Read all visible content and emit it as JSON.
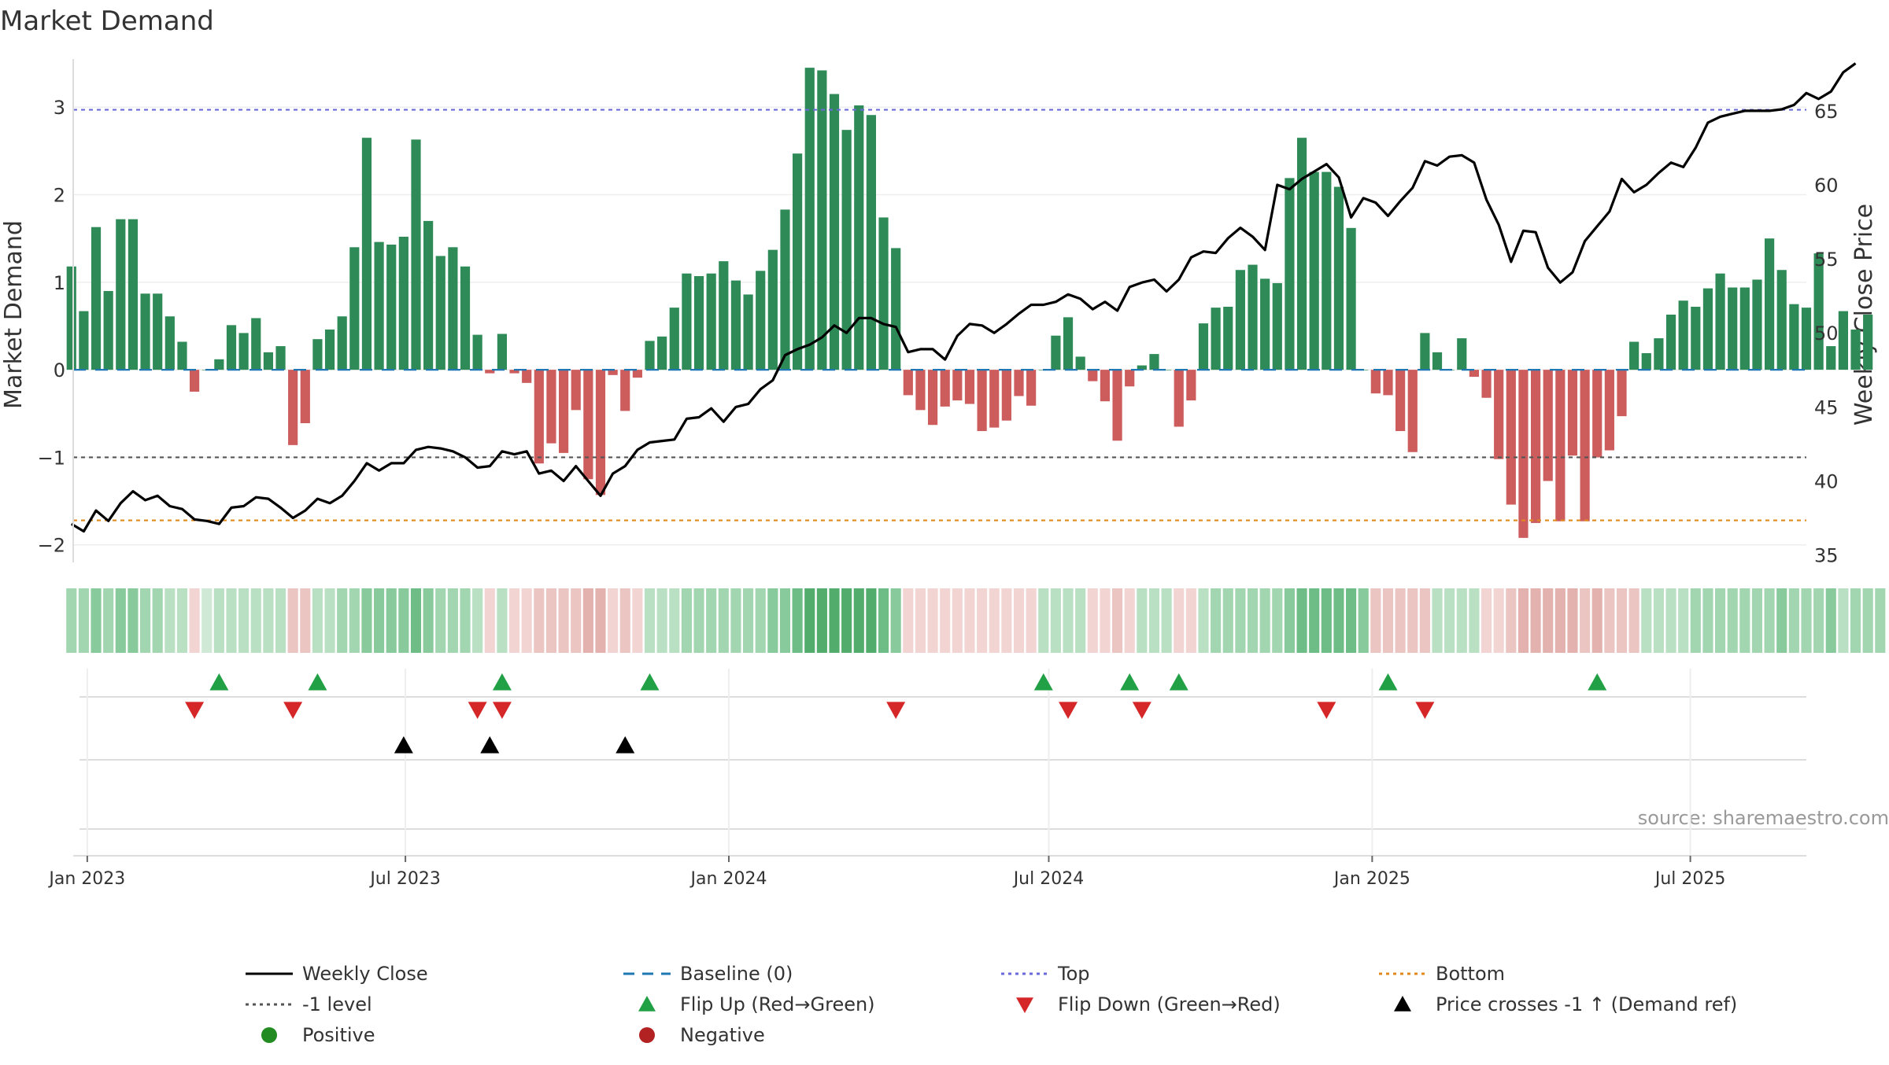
{
  "title": "Market Demand",
  "source_note": "source: sharemaestro.com",
  "left_axis": {
    "label": "Market Demand",
    "ticks": [
      "3",
      "2",
      "1",
      "0",
      "−1",
      "−2"
    ],
    "tick_values": [
      3,
      2,
      1,
      0,
      -1,
      -2
    ],
    "range": [
      -2.2,
      3.55
    ]
  },
  "right_axis": {
    "label": "Weekly Close Price",
    "ticks": [
      "65",
      "60",
      "55",
      "50",
      "45",
      "40",
      "35"
    ],
    "tick_values": [
      65,
      60,
      55,
      50,
      45,
      40,
      35
    ],
    "range": [
      34.5,
      68.5
    ]
  },
  "x_axis": {
    "ticks": [
      "Jan 2023",
      "Jul 2023",
      "Jan 2024",
      "Jul 2024",
      "Jan 2025",
      "Jul 2025"
    ],
    "tick_dates": [
      "2023-01-01",
      "2023-07-01",
      "2024-01-01",
      "2024-07-01",
      "2025-01-01",
      "2025-07-01"
    ],
    "range": [
      "2022-12-24",
      "2025-09-05"
    ]
  },
  "reference_lines": {
    "top": 2.97,
    "minus_one": -1.0,
    "bottom": -1.72,
    "baseline": 0
  },
  "colors": {
    "pos_bar": "#2e8b57",
    "neg_bar": "#cd5c5c",
    "price": "#000000",
    "top": "#6a6ad8",
    "minus_one": "#555555",
    "bottom": "#e08a1e",
    "baseline": "#1f77b4",
    "flip_up": "#22a046",
    "flip_down": "#d62728",
    "cross": "#000000",
    "pos_dot": "#228b22",
    "neg_dot": "#b22222"
  },
  "legend": [
    {
      "label": "Weekly Close",
      "kind": "solid",
      "color": "#000000"
    },
    {
      "label": "Baseline (0)",
      "kind": "longdash",
      "color": "#1f77b4"
    },
    {
      "label": "Top",
      "kind": "dot",
      "color": "#6a6ad8"
    },
    {
      "label": "Bottom",
      "kind": "dot",
      "color": "#e08a1e"
    },
    {
      "label": "-1 level",
      "kind": "dot",
      "color": "#555555"
    },
    {
      "label": "Flip Up (Red→Green)",
      "kind": "tri-up",
      "color": "#22a046"
    },
    {
      "label": "Flip Down (Green→Red)",
      "kind": "tri-down",
      "color": "#d62728"
    },
    {
      "label": "Price crosses -1 ↑ (Demand ref)",
      "kind": "tri-up",
      "color": "#000000"
    },
    {
      "label": "Positive",
      "kind": "circle",
      "color": "#228b22"
    },
    {
      "label": "Negative",
      "kind": "circle",
      "color": "#b22222"
    }
  ],
  "chart_data": {
    "type": "bar",
    "title": "Market Demand",
    "start_week": "2022-12-23",
    "week_step_days": 7,
    "ylabel": "Market Demand",
    "y2label": "Weekly Close Price",
    "ylim": [
      -2.2,
      3.55
    ],
    "y2lim": [
      34.5,
      68.5
    ],
    "series": [
      {
        "name": "Market Demand",
        "values": [
          1.18,
          0.67,
          1.63,
          0.9,
          1.72,
          1.72,
          0.87,
          0.87,
          0.61,
          0.32,
          -0.25,
          0,
          0.12,
          0.51,
          0.42,
          0.59,
          0.2,
          0.27,
          -0.86,
          -0.61,
          0.35,
          0.46,
          0.61,
          1.4,
          2.65,
          1.46,
          1.43,
          1.52,
          2.63,
          1.7,
          1.3,
          1.4,
          1.18,
          0.4,
          -0.04,
          0.41,
          -0.04,
          -0.15,
          -1.07,
          -0.84,
          -0.95,
          -0.46,
          -1.25,
          -1.43,
          -0.06,
          -0.47,
          -0.09,
          0.33,
          0.38,
          0.71,
          1.1,
          1.07,
          1.1,
          1.24,
          1.02,
          0.86,
          1.13,
          1.37,
          1.83,
          2.47,
          3.45,
          3.42,
          3.15,
          2.74,
          3.02,
          2.91,
          1.74,
          1.39,
          -0.29,
          -0.46,
          -0.63,
          -0.42,
          -0.35,
          -0.39,
          -0.7,
          -0.66,
          -0.58,
          -0.3,
          -0.41,
          0,
          0.39,
          0.6,
          0.15,
          -0.13,
          -0.36,
          -0.81,
          -0.19,
          0.05,
          0.18,
          0,
          -0.65,
          -0.35,
          0.53,
          0.71,
          0.72,
          1.14,
          1.2,
          1.04,
          0.99,
          2.19,
          2.65,
          2.26,
          2.26,
          2.09,
          1.62,
          0,
          -0.27,
          -0.29,
          -0.7,
          -0.94,
          0.42,
          0.2,
          0,
          0.36,
          -0.08,
          -0.32,
          -1.02,
          -1.54,
          -1.92,
          -1.75,
          -1.27,
          -1.73,
          -0.98,
          -1.73,
          -1.0,
          -0.92,
          -0.53,
          0.32,
          0.19,
          0.36,
          0.63,
          0.79,
          0.72,
          0.93,
          1.1,
          0.94,
          0.94,
          1.03,
          1.5,
          1.14,
          0.75,
          0.71,
          1.33,
          0.27,
          0.67,
          0.46,
          0.63
        ]
      },
      {
        "name": "Weekly Close",
        "values": [
          37.1,
          36.6,
          38.0,
          37.3,
          38.5,
          39.3,
          38.7,
          39.0,
          38.3,
          38.1,
          37.4,
          37.3,
          37.1,
          38.2,
          38.3,
          38.9,
          38.8,
          38.2,
          37.5,
          38.0,
          38.8,
          38.5,
          39.0,
          40.0,
          41.2,
          40.7,
          41.2,
          41.2,
          42.1,
          42.3,
          42.2,
          42.0,
          41.6,
          40.9,
          41.0,
          42.0,
          41.8,
          42.0,
          40.5,
          40.7,
          40.0,
          41.0,
          40.0,
          39.0,
          40.5,
          41.0,
          42.1,
          42.6,
          42.7,
          42.8,
          44.2,
          44.3,
          44.9,
          44.0,
          45.0,
          45.2,
          46.2,
          46.8,
          48.5,
          48.9,
          49.2,
          49.7,
          50.5,
          50.0,
          51.0,
          51.0,
          50.6,
          50.4,
          48.7,
          48.9,
          48.9,
          48.2,
          49.8,
          50.6,
          50.5,
          50.0,
          50.6,
          51.3,
          51.9,
          51.9,
          52.1,
          52.6,
          52.3,
          51.6,
          52.1,
          51.5,
          53.1,
          53.4,
          53.6,
          52.8,
          53.6,
          55.1,
          55.5,
          55.4,
          56.4,
          57.1,
          56.5,
          55.6,
          60.0,
          59.7,
          60.4,
          60.9,
          61.4,
          60.5,
          57.8,
          59.1,
          58.8,
          57.9,
          58.9,
          59.8,
          61.6,
          61.3,
          61.9,
          62.0,
          61.5,
          59.0,
          57.3,
          54.8,
          56.9,
          56.8,
          54.4,
          53.4,
          54.1,
          56.2,
          57.2,
          58.2,
          60.4,
          59.5,
          60.0,
          60.8,
          61.5,
          61.2,
          62.5,
          64.2,
          64.6,
          64.8,
          65.0,
          65.0,
          65.0,
          65.1,
          65.4,
          66.2,
          65.8,
          66.3,
          67.6,
          68.2
        ]
      }
    ],
    "flip_up_weeks": [
      6,
      10,
      17,
      29,
      47,
      50,
      51,
      60,
      72
    ],
    "flip_down_weeks": [
      5,
      9,
      16,
      17,
      34,
      40,
      42,
      51,
      55
    ],
    "cross_weeks": [
      14,
      17,
      22
    ],
    "strip_shades": [
      2,
      2,
      3,
      2,
      3,
      3,
      2,
      2,
      1,
      1,
      -1,
      0,
      1,
      1,
      1,
      1,
      1,
      1,
      -2,
      -2,
      1,
      1,
      2,
      2,
      3,
      3,
      3,
      3,
      4,
      3,
      2,
      2,
      2,
      1,
      -1,
      1,
      -1,
      -1,
      -2,
      -2,
      -2,
      -2,
      -3,
      -3,
      -1,
      -2,
      -1,
      1,
      1,
      1,
      2,
      2,
      2,
      2,
      2,
      2,
      2,
      3,
      3,
      4,
      5,
      5,
      5,
      5,
      5,
      5,
      4,
      3,
      -1,
      -1,
      -1,
      -1,
      -1,
      -1,
      -1,
      -1,
      -1,
      -1,
      -1,
      1,
      1,
      1,
      1,
      -1,
      -1,
      -2,
      -1,
      1,
      1,
      1,
      -1,
      -1,
      1,
      2,
      2,
      2,
      2,
      2,
      2,
      3,
      4,
      4,
      4,
      4,
      4,
      3,
      -2,
      -2,
      -2,
      -2,
      -2,
      1,
      1,
      1,
      1,
      -1,
      -1,
      -2,
      -3,
      -3,
      -3,
      -3,
      -3,
      -2,
      -3,
      -2,
      -2,
      -2,
      1,
      1,
      1,
      1,
      2,
      2,
      2,
      2,
      2,
      2,
      2,
      3,
      2,
      2,
      2,
      3,
      1,
      2,
      2,
      2
    ]
  }
}
